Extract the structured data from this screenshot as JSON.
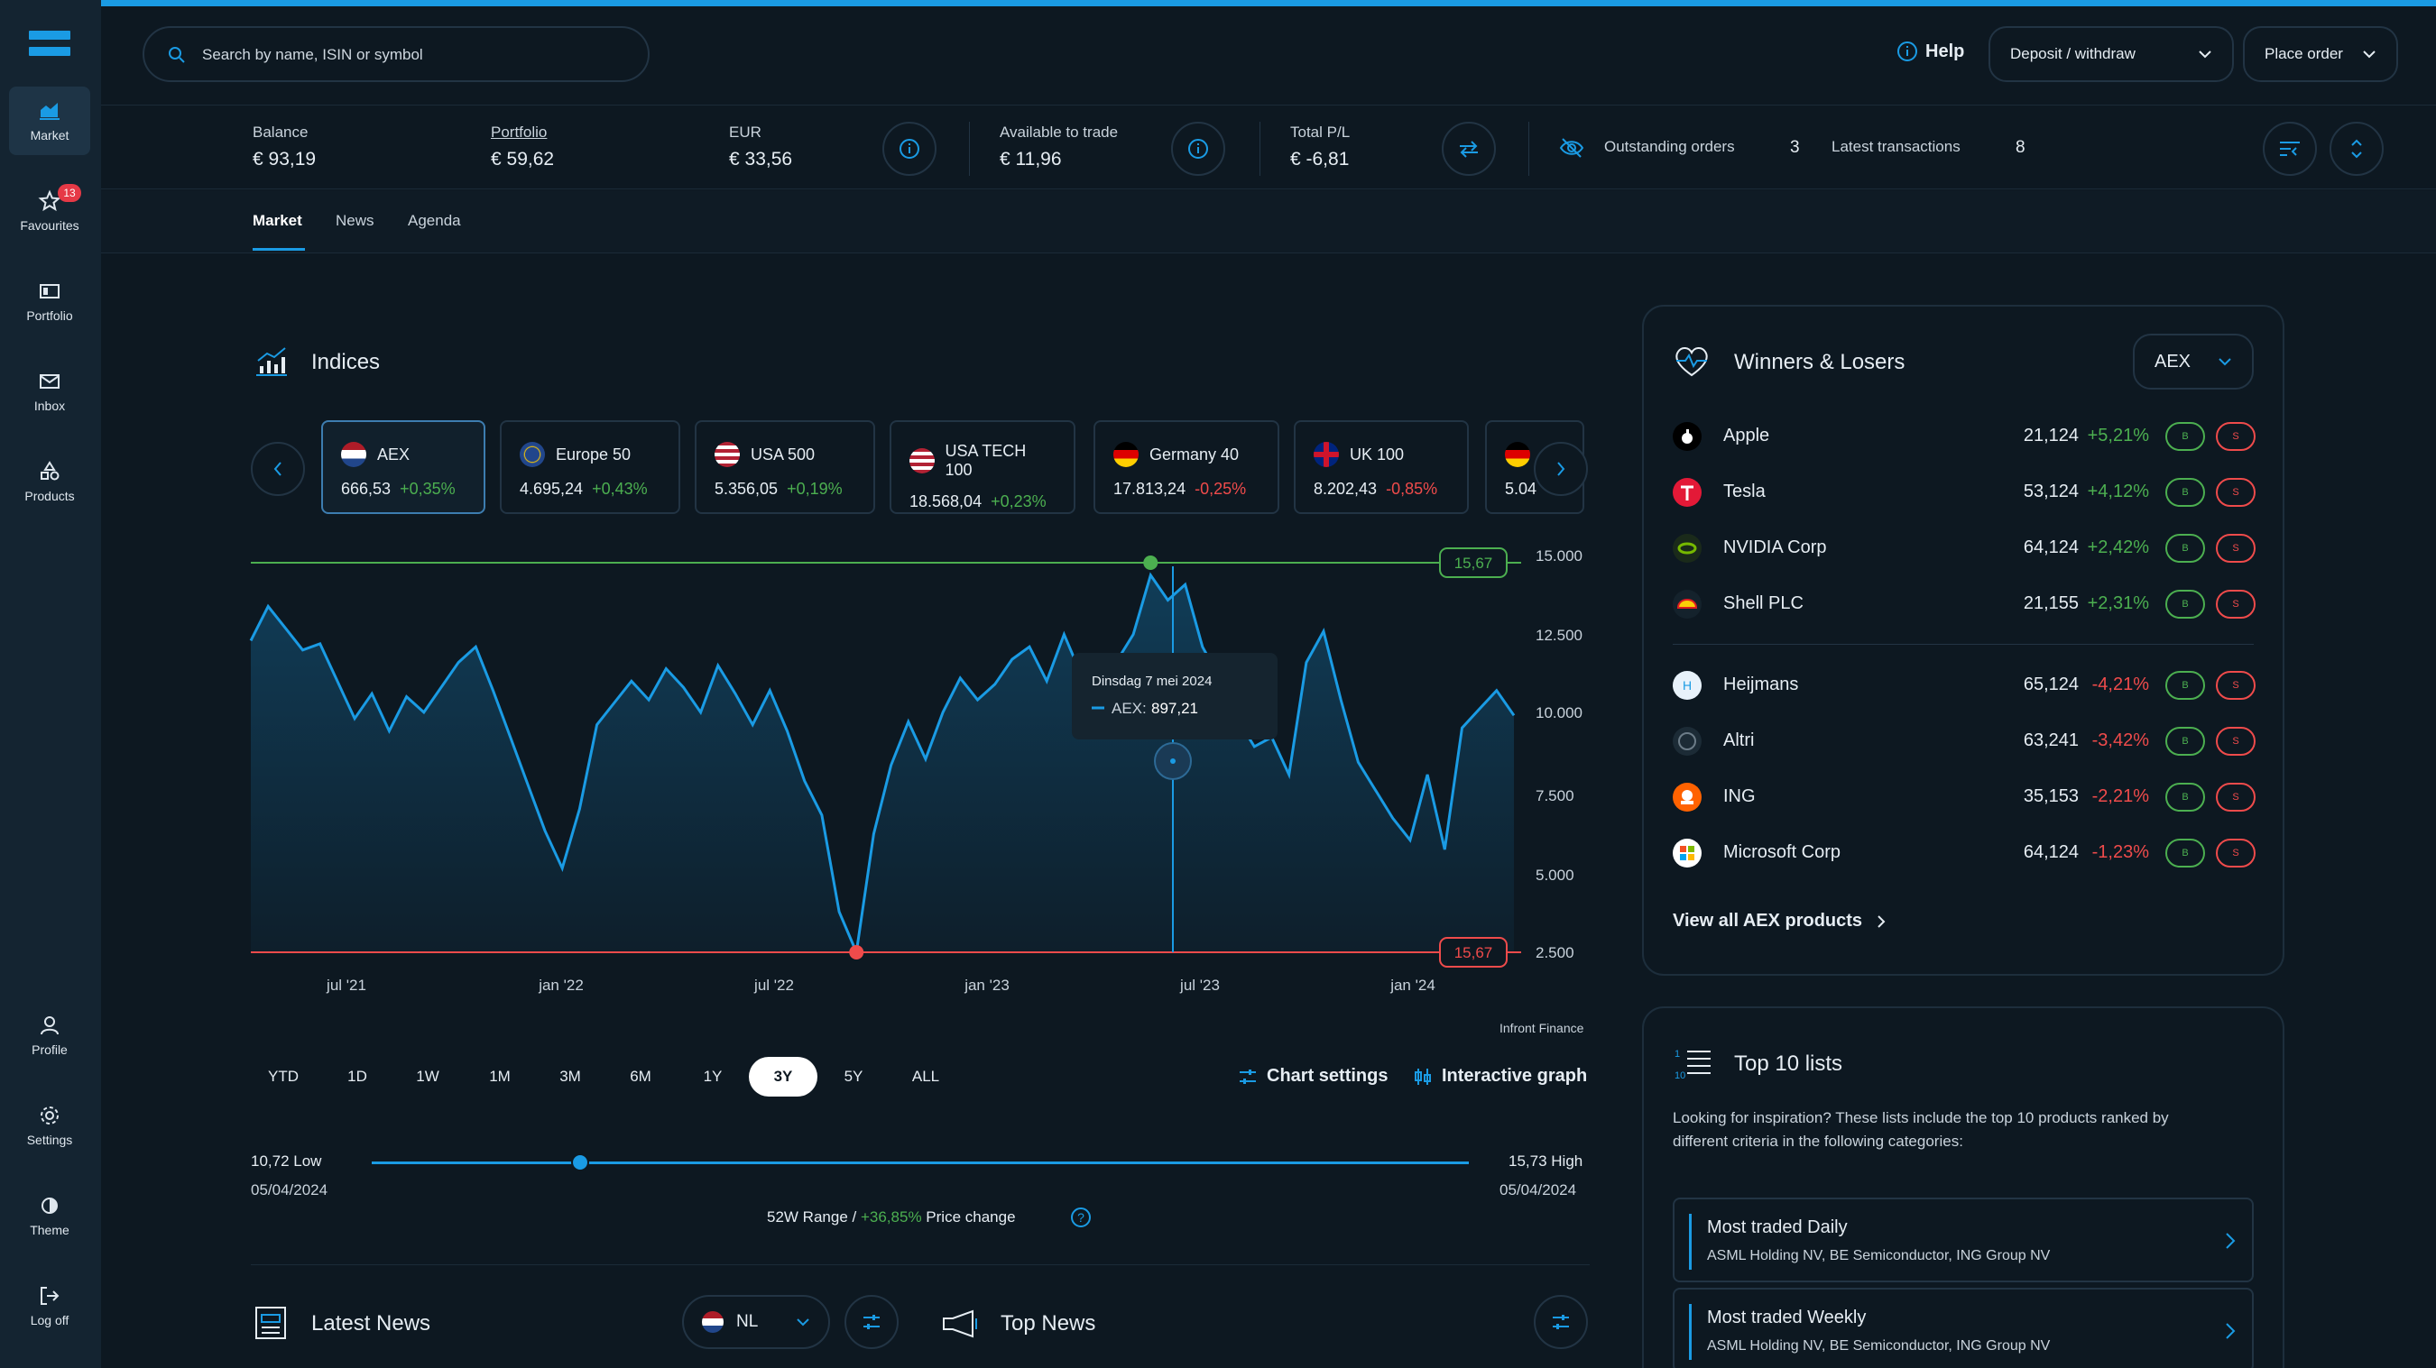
{
  "sidebar": {
    "items": [
      {
        "label": "Market",
        "icon": "market-icon"
      },
      {
        "label": "Favourites",
        "icon": "star-icon",
        "badge": "13"
      },
      {
        "label": "Portfolio",
        "icon": "portfolio-icon"
      },
      {
        "label": "Inbox",
        "icon": "inbox-icon"
      },
      {
        "label": "Products",
        "icon": "products-icon"
      }
    ],
    "bottom_items": [
      {
        "label": "Profile",
        "icon": "profile-icon"
      },
      {
        "label": "Settings",
        "icon": "gear-icon"
      },
      {
        "label": "Theme",
        "icon": "theme-icon"
      },
      {
        "label": "Log off",
        "icon": "logout-icon"
      }
    ]
  },
  "header": {
    "search_placeholder": "Search by name, ISIN or symbol",
    "help": "Help",
    "deposit": "Deposit / withdraw",
    "place_order": "Place order"
  },
  "stats": {
    "balance_label": "Balance",
    "balance": "€ 93,19",
    "portfolio_label": "Portfolio",
    "portfolio": "€ 59,62",
    "eur_label": "EUR",
    "eur": "€ 33,56",
    "available_label": "Available to trade",
    "available": "€ 11,96",
    "pl_label": "Total P/L",
    "pl": "€ -6,81",
    "outstanding_label": "Outstanding orders",
    "outstanding": "3",
    "latest_label": "Latest transactions",
    "latest": "8"
  },
  "tabs": [
    "Market",
    "News",
    "Agenda"
  ],
  "indices": {
    "title": "Indices",
    "cards": [
      {
        "name": "AEX",
        "value": "666,53",
        "change": "+0,35%",
        "dir": "pos"
      },
      {
        "name": "Europe 50",
        "value": "4.695,24",
        "change": "+0,43%",
        "dir": "pos"
      },
      {
        "name": "USA 500",
        "value": "5.356,05",
        "change": "+0,19%",
        "dir": "pos"
      },
      {
        "name": "USA TECH 100",
        "value": "18.568,04",
        "change": "+0,23%",
        "dir": "pos"
      },
      {
        "name": "Germany 40",
        "value": "17.813,24",
        "change": "-0,25%",
        "dir": "neg"
      },
      {
        "name": "UK 100",
        "value": "8.202,43",
        "change": "-0,85%",
        "dir": "neg"
      },
      {
        "name": "",
        "value": "5.04",
        "change": "",
        "dir": "neg"
      }
    ]
  },
  "chart_data": {
    "type": "area",
    "series": [
      {
        "name": "AEX",
        "values": [
          12500,
          13600,
          12900,
          12200,
          12400,
          11200,
          10000,
          10800,
          9600,
          10700,
          10200,
          11000,
          11800,
          12300,
          10900,
          9400,
          7900,
          6400,
          5200,
          7100,
          9800,
          10500,
          11200,
          10600,
          11600,
          11000,
          10200,
          11700,
          10800,
          9800,
          10900,
          9600,
          8000,
          6900,
          3800,
          2500,
          6300,
          8500,
          9900,
          8700,
          10200,
          11300,
          10600,
          11100,
          11900,
          12300,
          11200,
          12700,
          11400,
          10100,
          11800,
          12700,
          14600,
          13800,
          14300,
          12300,
          11300,
          10000,
          9100,
          9400,
          8200,
          11800,
          12800,
          10600,
          8600,
          7700,
          6800,
          6100,
          8200,
          5800,
          9700,
          10300,
          10900,
          10100
        ]
      }
    ],
    "x_ticks": [
      "jul '21",
      "jan '22",
      "jul '22",
      "jan '23",
      "jul '23",
      "jan '24"
    ],
    "y_ticks": [
      "15.000",
      "12.500",
      "10.000",
      "7.500",
      "5.000",
      "2.500"
    ],
    "ylim": [
      2500,
      15000
    ],
    "high_label": "15,67",
    "low_label": "15,67",
    "tooltip_date": "Dinsdag 7 mei 2024",
    "tooltip_series": "AEX:",
    "tooltip_value": "897,21",
    "source": "Infront Finance",
    "line_color": "#1a9be4"
  },
  "ranges": [
    "YTD",
    "1D",
    "1W",
    "1M",
    "3M",
    "6M",
    "1Y",
    "3Y",
    "5Y",
    "ALL"
  ],
  "active_range": "3Y",
  "chart_settings": "Chart settings",
  "interactive_graph": "Interactive graph",
  "range52": {
    "low": "10,72 Low",
    "low_date": "05/04/2024",
    "high": "15,73 High",
    "high_date": "05/04/2024",
    "caption_a": "52W Range /",
    "caption_change": "+36,85%",
    "caption_b": "Price change",
    "position": 0.19
  },
  "latest_news": {
    "title": "Latest News",
    "country": "NL"
  },
  "top_news": {
    "title": "Top News"
  },
  "winners_losers": {
    "title": "Winners & Losers",
    "select": "AEX",
    "winners": [
      {
        "name": "Apple",
        "price": "21,124",
        "change": "+5,21%",
        "icon": "apple-icon"
      },
      {
        "name": "Tesla",
        "price": "53,124",
        "change": "+4,12%",
        "icon": "tesla-icon"
      },
      {
        "name": "NVIDIA Corp",
        "price": "64,124",
        "change": "+2,42%",
        "icon": "nvidia-icon"
      },
      {
        "name": "Shell PLC",
        "price": "21,155",
        "change": "+2,31%",
        "icon": "shell-icon"
      }
    ],
    "losers": [
      {
        "name": "Heijmans",
        "price": "65,124",
        "change": "-4,21%",
        "icon": "heijmans-icon"
      },
      {
        "name": "Altri",
        "price": "63,241",
        "change": "-3,42%",
        "icon": "altri-icon"
      },
      {
        "name": "ING",
        "price": "35,153",
        "change": "-2,21%",
        "icon": "ing-icon"
      },
      {
        "name": "Microsoft Corp",
        "price": "64,124",
        "change": "-1,23%",
        "icon": "microsoft-icon"
      }
    ],
    "buy": "B",
    "sell": "S",
    "view_all": "View all AEX products"
  },
  "top10": {
    "title": "Top 10 lists",
    "description_1": "Looking for inspiration? These lists include the top 10 products ranked by",
    "description_2": "different criteria in the following categories:",
    "lists": [
      {
        "title": "Most traded Daily",
        "subtitle": "ASML Holding NV, BE Semiconductor, ING Group NV"
      },
      {
        "title": "Most traded Weekly",
        "subtitle": "ASML Holding NV, BE Semiconductor, ING Group NV"
      }
    ]
  }
}
